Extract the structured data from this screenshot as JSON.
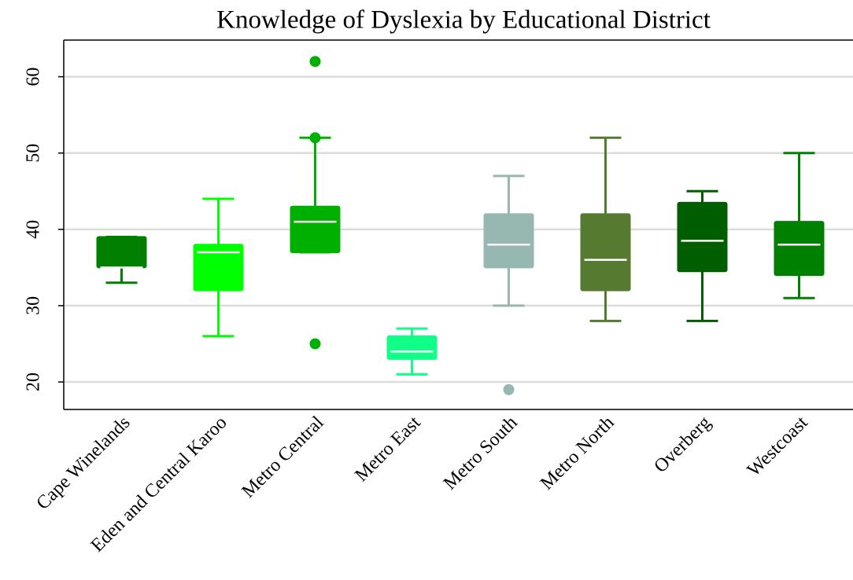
{
  "chart_data": {
    "type": "box",
    "title": "Knowledge of Dyslexia by Educational District",
    "categories": [
      "Cape Winelands",
      "Eden and Central Karoo",
      "Metro Central",
      "Metro East",
      "Metro South",
      "Metro North",
      "Overberg",
      "Westcoast"
    ],
    "boxes": [
      {
        "min": 33,
        "q1": 35,
        "median": 35,
        "q3": 39,
        "max": 39,
        "outliers": [],
        "color": "#007f00"
      },
      {
        "min": 26,
        "q1": 32,
        "median": 37,
        "q3": 38,
        "max": 44,
        "outliers": [],
        "color": "#00ff00"
      },
      {
        "min": 37,
        "q1": 37,
        "median": 41,
        "q3": 43,
        "max": 52,
        "outliers": [
          25,
          52,
          62
        ],
        "color": "#00b000"
      },
      {
        "min": 21,
        "q1": 23,
        "median": 24,
        "q3": 26,
        "max": 27,
        "outliers": [],
        "color": "#11ff88"
      },
      {
        "min": 30,
        "q1": 35,
        "median": 38,
        "q3": 42,
        "max": 47,
        "outliers": [
          19
        ],
        "color": "#96b8b0"
      },
      {
        "min": 28,
        "q1": 32,
        "median": 36,
        "q3": 42,
        "max": 52,
        "outliers": [],
        "color": "#557a30"
      },
      {
        "min": 28,
        "q1": 34.5,
        "median": 38.5,
        "q3": 43.5,
        "max": 45,
        "outliers": [],
        "color": "#005e00"
      },
      {
        "min": 31,
        "q1": 34,
        "median": 38,
        "q3": 41,
        "max": 50,
        "outliers": [],
        "color": "#008000"
      }
    ],
    "ylim": [
      16.4,
      64.8
    ],
    "yticks": [
      20,
      30,
      40,
      50,
      60
    ],
    "grid": true
  }
}
